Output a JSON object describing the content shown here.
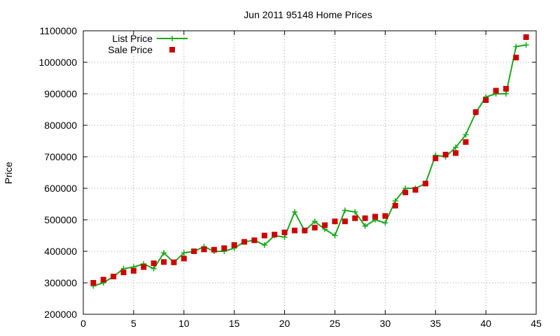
{
  "chart_data": {
    "type": "line",
    "title": "Jun 2011 95148 Home Prices",
    "xlabel": "",
    "ylabel": "Price",
    "xlim": [
      0,
      45
    ],
    "ylim": [
      200000,
      1100000
    ],
    "grid": true,
    "legend_position": "top-left",
    "x_ticks": [
      "0",
      "5",
      "10",
      "15",
      "20",
      "25",
      "30",
      "35",
      "40",
      "45"
    ],
    "y_ticks": [
      "200000",
      "300000",
      "400000",
      "500000",
      "600000",
      "700000",
      "800000",
      "900000",
      "1000000",
      "1100000"
    ],
    "series": [
      {
        "name": "List Price",
        "color": "#1ba81b",
        "marker": "plus",
        "style": "line",
        "x": [
          1,
          2,
          3,
          4,
          5,
          6,
          7,
          8,
          9,
          10,
          11,
          12,
          13,
          14,
          15,
          16,
          17,
          18,
          19,
          20,
          21,
          22,
          23,
          24,
          25,
          26,
          27,
          28,
          29,
          30,
          31,
          32,
          33,
          34,
          35,
          36,
          37,
          38,
          39,
          40,
          41,
          42,
          43,
          44
        ],
        "values": [
          290000,
          300000,
          320000,
          345000,
          350000,
          360000,
          345000,
          395000,
          365000,
          395000,
          400000,
          415000,
          400000,
          400000,
          410000,
          430000,
          435000,
          420000,
          450000,
          445000,
          525000,
          465000,
          495000,
          470000,
          450000,
          530000,
          525000,
          480000,
          500000,
          490000,
          560000,
          600000,
          600000,
          615000,
          705000,
          700000,
          730000,
          770000,
          840000,
          890000,
          900000,
          900000,
          1050000,
          1055000
        ]
      },
      {
        "name": "Sale Price",
        "color": "#cc0000",
        "marker": "square",
        "style": "points",
        "x": [
          1,
          2,
          3,
          4,
          5,
          6,
          7,
          8,
          9,
          10,
          11,
          12,
          13,
          14,
          15,
          16,
          17,
          18,
          19,
          20,
          21,
          22,
          23,
          24,
          25,
          26,
          27,
          28,
          29,
          30,
          31,
          32,
          33,
          34,
          35,
          36,
          37,
          38,
          39,
          40,
          41,
          42,
          43,
          44
        ],
        "values": [
          300000,
          310000,
          320000,
          333000,
          338000,
          350000,
          362000,
          366000,
          365000,
          377000,
          400000,
          406000,
          405000,
          410000,
          420000,
          430000,
          435000,
          450000,
          453000,
          460000,
          466000,
          466000,
          475000,
          483000,
          495000,
          495000,
          505000,
          505000,
          510000,
          512000,
          545000,
          587000,
          595000,
          615000,
          695000,
          707000,
          712000,
          747000,
          842000,
          880000,
          910000,
          916000,
          1015000,
          1080000
        ]
      }
    ]
  }
}
